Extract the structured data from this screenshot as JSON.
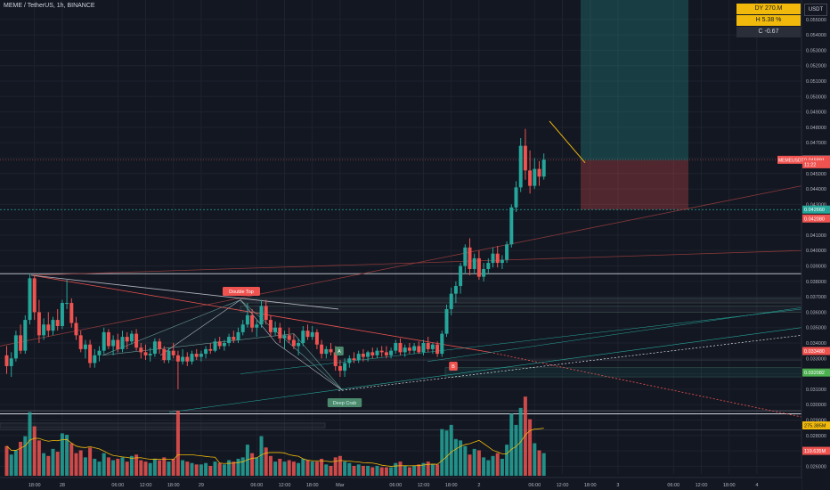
{
  "header": {
    "title": "MEME / TetherUS, 1h, BINANCE"
  },
  "ohlc_box": {
    "line1": "DY 270.M",
    "line2": "H 5.38 %",
    "line3": "C  -0.67"
  },
  "currency_button": "USDT",
  "colors": {
    "background": "#131722",
    "up": "#26a69a",
    "down": "#ef5350",
    "grid": "#1e222d",
    "axis_text": "#b2b5be"
  },
  "price_axis": {
    "ticks": [
      "0.055000",
      "0.054000",
      "0.053000",
      "0.052000",
      "0.051000",
      "0.050000",
      "0.049000",
      "0.048000",
      "0.047000",
      "0.046000",
      "0.045000",
      "0.044000",
      "0.043000",
      "0.042000",
      "0.041000",
      "0.040000",
      "0.039000",
      "0.038000",
      "0.037000",
      "0.036000",
      "0.035000",
      "0.034000",
      "0.033000",
      "0.032000",
      "0.031000",
      "0.030000",
      "0.029000",
      "0.028000",
      "0.027000",
      "0.026000"
    ],
    "badges": [
      {
        "text": "0.045915",
        "price": 0.045915,
        "bg": "#787b86"
      },
      {
        "text": "0.045891",
        "price": 0.045891,
        "bg": "#ef5350"
      },
      {
        "text": "11:22",
        "price": 0.0456,
        "bg": "#ef5350"
      },
      {
        "text": "0.042660",
        "price": 0.04266,
        "bg": "#26a69a"
      },
      {
        "text": "0.042080",
        "price": 0.04208,
        "bg": "#ef5350"
      },
      {
        "text": "0.033480",
        "price": 0.03348,
        "bg": "#ef5350"
      },
      {
        "text": "0.032082",
        "price": 0.032082,
        "bg": "#4caf50"
      },
      {
        "text": "275.385M",
        "price": 0.02865,
        "bg": "#f0b90b"
      },
      {
        "text": "119.635M",
        "price": 0.027,
        "bg": "#ef5350"
      }
    ],
    "left_badge": {
      "text": "MEMEUSDT",
      "price": 0.045891
    }
  },
  "time_axis": {
    "labels": [
      {
        "t": "18:00",
        "i": 6
      },
      {
        "t": "28",
        "i": 12
      },
      {
        "t": "06:00",
        "i": 24
      },
      {
        "t": "12:00",
        "i": 30
      },
      {
        "t": "18:00",
        "i": 36
      },
      {
        "t": "29",
        "i": 42
      },
      {
        "t": "06:00",
        "i": 54
      },
      {
        "t": "12:00",
        "i": 60
      },
      {
        "t": "18:00",
        "i": 66
      },
      {
        "t": "Mar",
        "i": 72
      },
      {
        "t": "06:00",
        "i": 84
      },
      {
        "t": "12:00",
        "i": 90
      },
      {
        "t": "18:00",
        "i": 96
      },
      {
        "t": "2",
        "i": 102
      },
      {
        "t": "06:00",
        "i": 114
      },
      {
        "t": "12:00",
        "i": 120
      },
      {
        "t": "18:00",
        "i": 126
      },
      {
        "t": "3",
        "i": 132
      },
      {
        "t": "06:00",
        "i": 144
      },
      {
        "t": "12:00",
        "i": 150
      },
      {
        "t": "18:00",
        "i": 156
      },
      {
        "t": "4",
        "i": 162
      }
    ]
  },
  "annotations": {
    "double_top": "Double Top",
    "deep_crab": "Deep Crab",
    "small_a": "A",
    "small_b": "B"
  },
  "chart_data": {
    "type": "candlestick",
    "symbol": "MEME / TetherUS",
    "interval": "1h",
    "exchange": "BINANCE",
    "y_range": [
      0.0255,
      0.0558
    ],
    "candles": [
      [
        0.0332,
        0.0338,
        0.032,
        0.0325,
        2.1
      ],
      [
        0.0325,
        0.0334,
        0.0318,
        0.033,
        1.5
      ],
      [
        0.033,
        0.0348,
        0.0328,
        0.0345,
        1.8
      ],
      [
        0.0345,
        0.0352,
        0.0333,
        0.0335,
        2.4
      ],
      [
        0.0335,
        0.0358,
        0.0333,
        0.0355,
        2.8
      ],
      [
        0.0355,
        0.0385,
        0.0352,
        0.0382,
        4.5
      ],
      [
        0.0382,
        0.0384,
        0.0355,
        0.036,
        3.5
      ],
      [
        0.036,
        0.0368,
        0.034,
        0.0345,
        2.5
      ],
      [
        0.0345,
        0.0356,
        0.0342,
        0.0352,
        1.6
      ],
      [
        0.0352,
        0.036,
        0.0344,
        0.0348,
        1.4
      ],
      [
        0.0348,
        0.0357,
        0.0345,
        0.0355,
        1.9
      ],
      [
        0.0355,
        0.0362,
        0.0348,
        0.0351,
        1.7
      ],
      [
        0.0351,
        0.0368,
        0.0349,
        0.0366,
        3.0
      ],
      [
        0.0366,
        0.0381,
        0.0362,
        0.0366,
        2.9
      ],
      [
        0.0366,
        0.0369,
        0.035,
        0.0353,
        2.3
      ],
      [
        0.0353,
        0.0357,
        0.0342,
        0.0345,
        1.6
      ],
      [
        0.0345,
        0.0348,
        0.0334,
        0.0336,
        1.8
      ],
      [
        0.0336,
        0.0342,
        0.033,
        0.0339,
        1.3
      ],
      [
        0.0339,
        0.0342,
        0.0324,
        0.0327,
        2.0
      ],
      [
        0.0327,
        0.0336,
        0.0324,
        0.0332,
        1.2
      ],
      [
        0.0332,
        0.0338,
        0.0328,
        0.0335,
        1.0
      ],
      [
        0.0335,
        0.035,
        0.0333,
        0.0347,
        1.6
      ],
      [
        0.0347,
        0.0349,
        0.0336,
        0.0338,
        1.3
      ],
      [
        0.0338,
        0.0345,
        0.0332,
        0.0342,
        1.1
      ],
      [
        0.0342,
        0.0346,
        0.0334,
        0.0336,
        1.2
      ],
      [
        0.0336,
        0.0348,
        0.0334,
        0.0344,
        1.3
      ],
      [
        0.0344,
        0.0347,
        0.0336,
        0.0341,
        1.0
      ],
      [
        0.0341,
        0.0348,
        0.0339,
        0.0346,
        1.4
      ],
      [
        0.0346,
        0.0349,
        0.0335,
        0.0337,
        1.5
      ],
      [
        0.0337,
        0.034,
        0.033,
        0.0334,
        1.1
      ],
      [
        0.0334,
        0.0339,
        0.0329,
        0.0332,
        1.0
      ],
      [
        0.0332,
        0.0337,
        0.0328,
        0.0333,
        0.9
      ],
      [
        0.0333,
        0.0343,
        0.0331,
        0.0341,
        1.2
      ],
      [
        0.0341,
        0.0343,
        0.0333,
        0.0336,
        1.1
      ],
      [
        0.0336,
        0.0338,
        0.0327,
        0.0329,
        1.3
      ],
      [
        0.0329,
        0.0337,
        0.0327,
        0.0335,
        1.0
      ],
      [
        0.0335,
        0.034,
        0.033,
        0.0332,
        1.2
      ],
      [
        0.0332,
        0.0335,
        0.031,
        0.0328,
        4.6
      ],
      [
        0.0328,
        0.0336,
        0.0326,
        0.0331,
        1.1
      ],
      [
        0.0331,
        0.0334,
        0.0325,
        0.0328,
        1.0
      ],
      [
        0.0328,
        0.0335,
        0.0326,
        0.0333,
        0.9
      ],
      [
        0.0333,
        0.0336,
        0.0329,
        0.0331,
        0.8
      ],
      [
        0.0331,
        0.0335,
        0.0328,
        0.0333,
        0.8
      ],
      [
        0.0333,
        0.0338,
        0.033,
        0.0336,
        0.9
      ],
      [
        0.0336,
        0.034,
        0.0333,
        0.0335,
        0.7
      ],
      [
        0.0335,
        0.0343,
        0.0334,
        0.0341,
        1.0
      ],
      [
        0.0341,
        0.0344,
        0.0336,
        0.0338,
        0.9
      ],
      [
        0.0338,
        0.0342,
        0.0335,
        0.034,
        0.8
      ],
      [
        0.034,
        0.0346,
        0.0338,
        0.0344,
        1.1
      ],
      [
        0.0344,
        0.0348,
        0.034,
        0.0342,
        1.0
      ],
      [
        0.0342,
        0.035,
        0.034,
        0.0347,
        1.2
      ],
      [
        0.0347,
        0.0355,
        0.0345,
        0.0352,
        1.3
      ],
      [
        0.0352,
        0.0366,
        0.035,
        0.0358,
        2.2
      ],
      [
        0.0358,
        0.0362,
        0.0347,
        0.035,
        1.6
      ],
      [
        0.035,
        0.0355,
        0.0344,
        0.0352,
        1.3
      ],
      [
        0.0352,
        0.0368,
        0.035,
        0.0364,
        2.8
      ],
      [
        0.0364,
        0.0368,
        0.0352,
        0.0355,
        2.0
      ],
      [
        0.0355,
        0.0358,
        0.0344,
        0.0347,
        1.4
      ],
      [
        0.0347,
        0.0354,
        0.0345,
        0.035,
        1.0
      ],
      [
        0.035,
        0.0353,
        0.034,
        0.0343,
        1.2
      ],
      [
        0.0343,
        0.0348,
        0.0336,
        0.0345,
        1.0
      ],
      [
        0.0345,
        0.035,
        0.034,
        0.0342,
        1.1
      ],
      [
        0.0342,
        0.0346,
        0.0336,
        0.0338,
        1.0
      ],
      [
        0.0338,
        0.0343,
        0.0332,
        0.034,
        0.9
      ],
      [
        0.034,
        0.0351,
        0.0338,
        0.0348,
        1.2
      ],
      [
        0.0348,
        0.0352,
        0.0342,
        0.0344,
        1.1
      ],
      [
        0.0344,
        0.0351,
        0.0342,
        0.0347,
        1.0
      ],
      [
        0.0347,
        0.0349,
        0.0336,
        0.0339,
        1.0
      ],
      [
        0.0339,
        0.0342,
        0.033,
        0.0333,
        1.2
      ],
      [
        0.0333,
        0.0338,
        0.033,
        0.0336,
        0.8
      ],
      [
        0.0336,
        0.034,
        0.0332,
        0.0334,
        0.7
      ],
      [
        0.0334,
        0.0338,
        0.0322,
        0.0325,
        1.3
      ],
      [
        0.0325,
        0.0329,
        0.0318,
        0.0322,
        1.4
      ],
      [
        0.0322,
        0.033,
        0.0318,
        0.0327,
        1.0
      ],
      [
        0.0327,
        0.0332,
        0.0324,
        0.033,
        0.9
      ],
      [
        0.033,
        0.0334,
        0.0327,
        0.0329,
        0.7
      ],
      [
        0.0329,
        0.0335,
        0.0327,
        0.0333,
        0.8
      ],
      [
        0.0333,
        0.0336,
        0.0328,
        0.0331,
        0.7
      ],
      [
        0.0331,
        0.0335,
        0.0328,
        0.0334,
        0.7
      ],
      [
        0.0334,
        0.0337,
        0.033,
        0.0332,
        0.6
      ],
      [
        0.0332,
        0.0337,
        0.033,
        0.0335,
        0.7
      ],
      [
        0.0335,
        0.0338,
        0.0331,
        0.0334,
        0.6
      ],
      [
        0.0334,
        0.0338,
        0.033,
        0.0332,
        0.6
      ],
      [
        0.0332,
        0.0337,
        0.033,
        0.0335,
        0.6
      ],
      [
        0.0335,
        0.0342,
        0.0333,
        0.034,
        0.9
      ],
      [
        0.034,
        0.0343,
        0.0332,
        0.0334,
        1.0
      ],
      [
        0.0334,
        0.0339,
        0.0331,
        0.0337,
        0.7
      ],
      [
        0.0337,
        0.034,
        0.0333,
        0.0335,
        0.6
      ],
      [
        0.0335,
        0.034,
        0.0333,
        0.0338,
        0.7
      ],
      [
        0.0338,
        0.0341,
        0.0333,
        0.0334,
        0.8
      ],
      [
        0.0334,
        0.0342,
        0.0332,
        0.034,
        0.9
      ],
      [
        0.034,
        0.0344,
        0.0334,
        0.0336,
        1.0
      ],
      [
        0.0336,
        0.034,
        0.0333,
        0.0339,
        0.8
      ],
      [
        0.0339,
        0.0341,
        0.0331,
        0.0333,
        0.8
      ],
      [
        0.0333,
        0.0348,
        0.0331,
        0.0346,
        3.3
      ],
      [
        0.0346,
        0.0365,
        0.0344,
        0.0362,
        3.2
      ],
      [
        0.0362,
        0.0376,
        0.0358,
        0.0372,
        3.6
      ],
      [
        0.0372,
        0.038,
        0.0366,
        0.0377,
        2.6
      ],
      [
        0.0377,
        0.0392,
        0.0372,
        0.039,
        2.5
      ],
      [
        0.039,
        0.0404,
        0.0385,
        0.0402,
        2.1
      ],
      [
        0.0402,
        0.0408,
        0.0384,
        0.0388,
        1.5
      ],
      [
        0.0388,
        0.0398,
        0.0385,
        0.0395,
        1.9
      ],
      [
        0.0395,
        0.04,
        0.0381,
        0.0383,
        1.8
      ],
      [
        0.0383,
        0.0392,
        0.038,
        0.0388,
        1.3
      ],
      [
        0.0388,
        0.0395,
        0.0385,
        0.0392,
        1.1
      ],
      [
        0.0392,
        0.0402,
        0.0389,
        0.0398,
        1.4
      ],
      [
        0.0398,
        0.0403,
        0.0389,
        0.0392,
        1.6
      ],
      [
        0.0392,
        0.0397,
        0.0388,
        0.0394,
        1.2
      ],
      [
        0.0394,
        0.0406,
        0.0392,
        0.0404,
        2.2
      ],
      [
        0.0404,
        0.043,
        0.0402,
        0.0428,
        4.4
      ],
      [
        0.0428,
        0.0445,
        0.0425,
        0.0441,
        3.6
      ],
      [
        0.0441,
        0.0473,
        0.0438,
        0.0468,
        4.8
      ],
      [
        0.0468,
        0.0479,
        0.0446,
        0.0452,
        5.6
      ],
      [
        0.0452,
        0.0465,
        0.0437,
        0.0442,
        4.0
      ],
      [
        0.0442,
        0.046,
        0.044,
        0.0453,
        2.3
      ],
      [
        0.0453,
        0.0458,
        0.0442,
        0.0448,
        1.8
      ],
      [
        0.0448,
        0.0463,
        0.0446,
        0.0459,
        1.6
      ]
    ],
    "volume_scale_max": 5.8
  }
}
